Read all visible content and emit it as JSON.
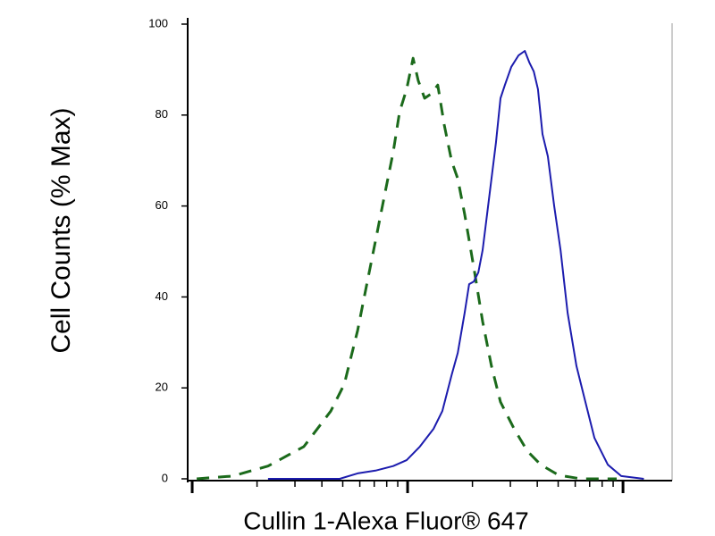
{
  "chart_data": {
    "type": "line",
    "ylabel": "Cell Counts (% Max)",
    "xlabel": "Cullin 1-Alexa Fluor® 647",
    "xscale": "log",
    "xlim": [
      0.953,
      169
    ],
    "xticks": [
      1,
      2,
      3,
      4,
      5,
      6,
      7,
      8,
      9,
      10,
      20,
      30,
      40,
      50,
      60,
      70,
      80,
      90,
      100
    ],
    "ylim": [
      0,
      100
    ],
    "yticks": [
      0,
      20,
      40,
      60,
      80,
      100
    ],
    "grid": false,
    "series": [
      {
        "color": "#1b6a1b",
        "dash": true,
        "x": [
          1.05,
          1.54,
          2.25,
          3.3,
          4.4,
          5.08,
          5.86,
          6.44,
          7.09,
          7.8,
          8.58,
          9.18,
          9.9,
          10.6,
          11.2,
          12.0,
          12.9,
          13.8,
          14.8,
          16.0,
          17.1,
          18.4,
          20.3,
          22.3,
          24.5,
          27.0,
          31.2,
          36.0,
          41.5,
          50.3,
          63.8,
          93.5
        ],
        "values": [
          0,
          0.6,
          2.8,
          7.1,
          14.9,
          20.8,
          32.6,
          42.4,
          52.3,
          62.1,
          71.9,
          80.7,
          85.7,
          92.5,
          87.6,
          83.7,
          84.7,
          86.6,
          77.8,
          69.9,
          66.0,
          58.2,
          46.4,
          34.6,
          24.8,
          16.9,
          11.0,
          6.1,
          3.1,
          0.8,
          0,
          0
        ]
      },
      {
        "color": "#1c1cae",
        "dash": false,
        "x": [
          2.25,
          4.84,
          5.86,
          7.09,
          8.58,
          9.9,
          11.4,
          13.2,
          14.5,
          16.0,
          17.1,
          18.4,
          19.3,
          20.3,
          21.3,
          22.3,
          23.4,
          24.5,
          25.7,
          27.0,
          28.3,
          30.3,
          32.7,
          35.0,
          36.7,
          38.5,
          40.3,
          42.3,
          44.8,
          47.9,
          51.3,
          55.3,
          60.8,
          66.9,
          73.7,
          85.0,
          98.1,
          125
        ],
        "values": [
          0,
          0,
          1.2,
          1.8,
          2.8,
          4.1,
          7.1,
          11.0,
          14.9,
          22.8,
          27.7,
          36.5,
          42.8,
          43.4,
          45.4,
          50.3,
          58.2,
          66.0,
          73.9,
          83.7,
          86.6,
          90.6,
          93.1,
          94.1,
          91.6,
          89.6,
          85.7,
          75.8,
          70.9,
          60.1,
          50.3,
          36.5,
          24.8,
          16.9,
          9.0,
          3.1,
          0.6,
          0
        ]
      }
    ]
  }
}
